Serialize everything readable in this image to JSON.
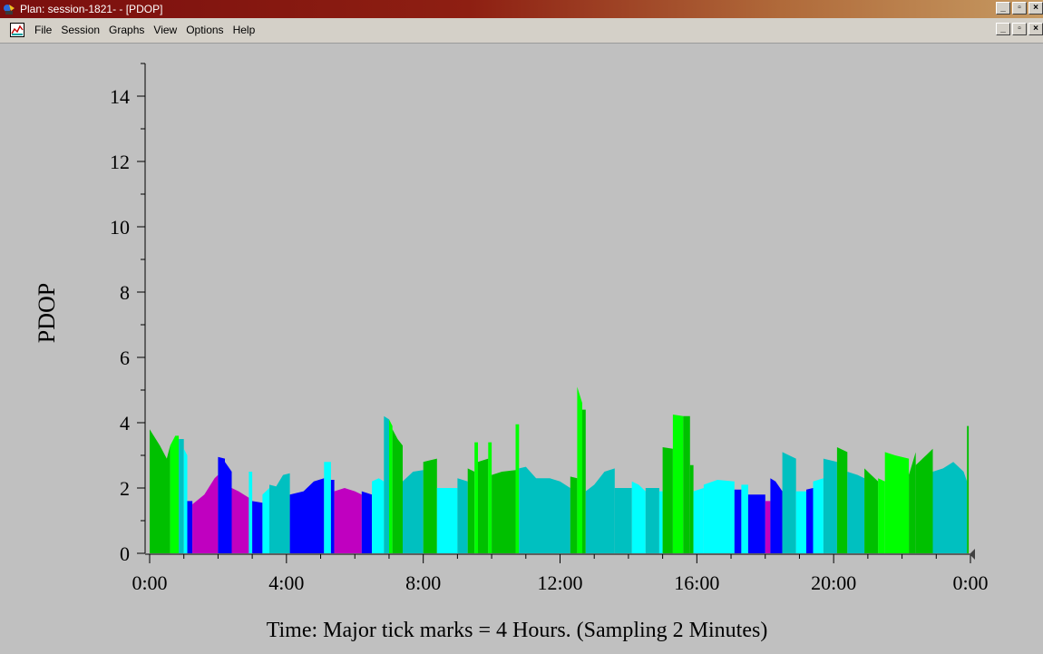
{
  "window": {
    "title": "Plan: session-1821- - [PDOP]"
  },
  "menu": {
    "items": [
      "File",
      "Session",
      "Graphs",
      "View",
      "Options",
      "Help"
    ]
  },
  "window_buttons": {
    "minimize": "_",
    "restore": "▫",
    "close": "×"
  },
  "colors": {
    "green": "#00c000",
    "magenta": "#c000c0",
    "blue": "#0000ff",
    "cyan": "#00ffff",
    "teal": "#00c0c0",
    "lime": "#00ff00",
    "background": "#c0c0c0"
  },
  "chart_data": {
    "type": "area",
    "ylabel": "PDOP",
    "xlabel": "Time: Major tick marks = 4 Hours. (Sampling 2 Minutes)",
    "xlim": [
      0,
      24
    ],
    "ylim": [
      0,
      15
    ],
    "x_tick_labels": [
      "0:00",
      "4:00",
      "8:00",
      "12:00",
      "16:00",
      "20:00",
      "0:00"
    ],
    "y_tick_labels": [
      "0",
      "2",
      "4",
      "6",
      "8",
      "10",
      "12",
      "14"
    ],
    "segments": [
      {
        "x0": 0.0,
        "x1": 0.6,
        "color": "green",
        "points": [
          [
            0.0,
            3.8
          ],
          [
            0.3,
            3.3
          ],
          [
            0.5,
            2.9
          ],
          [
            0.6,
            3.3
          ]
        ]
      },
      {
        "x0": 0.6,
        "x1": 0.85,
        "color": "lime",
        "points": [
          [
            0.6,
            3.3
          ],
          [
            0.75,
            3.6
          ],
          [
            0.85,
            3.6
          ]
        ]
      },
      {
        "x0": 0.85,
        "x1": 1.0,
        "color": "teal",
        "points": [
          [
            0.85,
            3.5
          ],
          [
            1.0,
            3.5
          ]
        ]
      },
      {
        "x0": 1.0,
        "x1": 1.1,
        "color": "cyan",
        "points": [
          [
            1.0,
            3.2
          ],
          [
            1.1,
            3.0
          ]
        ]
      },
      {
        "x0": 1.1,
        "x1": 1.25,
        "color": "blue",
        "points": [
          [
            1.1,
            1.6
          ],
          [
            1.25,
            1.6
          ]
        ]
      },
      {
        "x0": 1.25,
        "x1": 2.0,
        "color": "magenta",
        "points": [
          [
            1.25,
            1.5
          ],
          [
            1.6,
            1.8
          ],
          [
            1.9,
            2.3
          ],
          [
            2.0,
            2.4
          ]
        ]
      },
      {
        "x0": 2.0,
        "x1": 2.2,
        "color": "blue",
        "points": [
          [
            2.0,
            2.95
          ],
          [
            2.2,
            2.9
          ]
        ]
      },
      {
        "x0": 2.2,
        "x1": 2.4,
        "color": "blue",
        "points": [
          [
            2.2,
            2.8
          ],
          [
            2.4,
            2.5
          ]
        ]
      },
      {
        "x0": 2.4,
        "x1": 2.9,
        "color": "magenta",
        "points": [
          [
            2.4,
            2.0
          ],
          [
            2.6,
            1.9
          ],
          [
            2.9,
            1.7
          ]
        ]
      },
      {
        "x0": 2.9,
        "x1": 3.0,
        "color": "cyan",
        "points": [
          [
            2.9,
            2.5
          ],
          [
            3.0,
            2.5
          ]
        ]
      },
      {
        "x0": 3.0,
        "x1": 3.3,
        "color": "blue",
        "points": [
          [
            3.0,
            1.6
          ],
          [
            3.3,
            1.55
          ]
        ]
      },
      {
        "x0": 3.3,
        "x1": 3.5,
        "color": "cyan",
        "points": [
          [
            3.3,
            1.8
          ],
          [
            3.5,
            2.0
          ]
        ]
      },
      {
        "x0": 3.5,
        "x1": 4.1,
        "color": "teal",
        "points": [
          [
            3.5,
            2.1
          ],
          [
            3.7,
            2.05
          ],
          [
            3.9,
            2.4
          ],
          [
            4.1,
            2.45
          ]
        ]
      },
      {
        "x0": 4.1,
        "x1": 5.1,
        "color": "blue",
        "points": [
          [
            4.1,
            1.8
          ],
          [
            4.5,
            1.9
          ],
          [
            4.8,
            2.2
          ],
          [
            5.1,
            2.3
          ]
        ]
      },
      {
        "x0": 5.1,
        "x1": 5.3,
        "color": "cyan",
        "points": [
          [
            5.1,
            2.8
          ],
          [
            5.3,
            2.8
          ]
        ]
      },
      {
        "x0": 5.3,
        "x1": 5.4,
        "color": "blue",
        "points": [
          [
            5.3,
            2.25
          ],
          [
            5.4,
            2.25
          ]
        ]
      },
      {
        "x0": 5.4,
        "x1": 6.2,
        "color": "magenta",
        "points": [
          [
            5.4,
            1.9
          ],
          [
            5.7,
            2.0
          ],
          [
            6.0,
            1.9
          ],
          [
            6.2,
            1.8
          ]
        ]
      },
      {
        "x0": 6.2,
        "x1": 6.5,
        "color": "blue",
        "points": [
          [
            6.2,
            1.9
          ],
          [
            6.5,
            1.8
          ]
        ]
      },
      {
        "x0": 6.5,
        "x1": 6.85,
        "color": "cyan",
        "points": [
          [
            6.5,
            2.2
          ],
          [
            6.7,
            2.3
          ],
          [
            6.85,
            2.2
          ]
        ]
      },
      {
        "x0": 6.85,
        "x1": 7.0,
        "color": "teal",
        "points": [
          [
            6.85,
            4.2
          ],
          [
            7.0,
            4.1
          ]
        ]
      },
      {
        "x0": 7.0,
        "x1": 7.1,
        "color": "lime",
        "points": [
          [
            7.0,
            4.1
          ],
          [
            7.1,
            3.9
          ]
        ]
      },
      {
        "x0": 7.1,
        "x1": 7.4,
        "color": "green",
        "points": [
          [
            7.1,
            3.8
          ],
          [
            7.25,
            3.5
          ],
          [
            7.4,
            3.3
          ]
        ]
      },
      {
        "x0": 7.4,
        "x1": 8.0,
        "color": "teal",
        "points": [
          [
            7.4,
            2.2
          ],
          [
            7.7,
            2.5
          ],
          [
            8.0,
            2.55
          ]
        ]
      },
      {
        "x0": 8.0,
        "x1": 8.4,
        "color": "green",
        "points": [
          [
            8.0,
            2.8
          ],
          [
            8.4,
            2.9
          ]
        ]
      },
      {
        "x0": 8.4,
        "x1": 9.0,
        "color": "cyan",
        "points": [
          [
            8.4,
            2.0
          ],
          [
            9.0,
            2.0
          ]
        ]
      },
      {
        "x0": 9.0,
        "x1": 9.3,
        "color": "teal",
        "points": [
          [
            9.0,
            2.3
          ],
          [
            9.3,
            2.2
          ]
        ]
      },
      {
        "x0": 9.3,
        "x1": 9.5,
        "color": "green",
        "points": [
          [
            9.3,
            2.6
          ],
          [
            9.5,
            2.5
          ]
        ]
      },
      {
        "x0": 9.5,
        "x1": 9.6,
        "color": "lime",
        "points": [
          [
            9.5,
            3.4
          ],
          [
            9.6,
            3.4
          ]
        ]
      },
      {
        "x0": 9.6,
        "x1": 9.9,
        "color": "green",
        "points": [
          [
            9.6,
            2.8
          ],
          [
            9.9,
            2.9
          ]
        ]
      },
      {
        "x0": 9.9,
        "x1": 10.0,
        "color": "lime",
        "points": [
          [
            9.9,
            3.4
          ],
          [
            10.0,
            3.4
          ]
        ]
      },
      {
        "x0": 10.0,
        "x1": 10.7,
        "color": "green",
        "points": [
          [
            10.0,
            2.4
          ],
          [
            10.3,
            2.5
          ],
          [
            10.7,
            2.55
          ]
        ]
      },
      {
        "x0": 10.7,
        "x1": 10.8,
        "color": "lime",
        "points": [
          [
            10.7,
            3.95
          ],
          [
            10.8,
            3.95
          ]
        ]
      },
      {
        "x0": 10.8,
        "x1": 12.3,
        "color": "teal",
        "points": [
          [
            10.8,
            2.6
          ],
          [
            11.0,
            2.65
          ],
          [
            11.3,
            2.3
          ],
          [
            11.7,
            2.3
          ],
          [
            12.0,
            2.2
          ],
          [
            12.3,
            2.0
          ]
        ]
      },
      {
        "x0": 12.3,
        "x1": 12.5,
        "color": "green",
        "points": [
          [
            12.3,
            2.35
          ],
          [
            12.5,
            2.3
          ]
        ]
      },
      {
        "x0": 12.5,
        "x1": 12.65,
        "color": "lime",
        "points": [
          [
            12.5,
            5.1
          ],
          [
            12.65,
            4.6
          ]
        ]
      },
      {
        "x0": 12.65,
        "x1": 12.75,
        "color": "green",
        "points": [
          [
            12.65,
            4.4
          ],
          [
            12.75,
            4.4
          ]
        ]
      },
      {
        "x0": 12.75,
        "x1": 13.6,
        "color": "teal",
        "points": [
          [
            12.75,
            1.9
          ],
          [
            13.0,
            2.1
          ],
          [
            13.3,
            2.5
          ],
          [
            13.6,
            2.6
          ]
        ]
      },
      {
        "x0": 13.6,
        "x1": 14.1,
        "color": "teal",
        "points": [
          [
            13.6,
            2.0
          ],
          [
            14.1,
            2.0
          ]
        ]
      },
      {
        "x0": 14.1,
        "x1": 14.5,
        "color": "cyan",
        "points": [
          [
            14.1,
            2.2
          ],
          [
            14.3,
            2.1
          ],
          [
            14.5,
            1.9
          ]
        ]
      },
      {
        "x0": 14.5,
        "x1": 14.9,
        "color": "teal",
        "points": [
          [
            14.5,
            2.0
          ],
          [
            14.9,
            2.0
          ]
        ]
      },
      {
        "x0": 14.9,
        "x1": 15.0,
        "color": "cyan",
        "points": [
          [
            14.9,
            1.9
          ],
          [
            15.0,
            1.9
          ]
        ]
      },
      {
        "x0": 15.0,
        "x1": 15.3,
        "color": "green",
        "points": [
          [
            15.0,
            3.25
          ],
          [
            15.3,
            3.2
          ]
        ]
      },
      {
        "x0": 15.3,
        "x1": 15.6,
        "color": "lime",
        "points": [
          [
            15.3,
            4.25
          ],
          [
            15.6,
            4.2
          ]
        ]
      },
      {
        "x0": 15.6,
        "x1": 15.8,
        "color": "green",
        "points": [
          [
            15.6,
            4.2
          ],
          [
            15.8,
            4.2
          ]
        ]
      },
      {
        "x0": 15.8,
        "x1": 15.9,
        "color": "green",
        "points": [
          [
            15.8,
            2.7
          ],
          [
            15.9,
            2.7
          ]
        ]
      },
      {
        "x0": 15.9,
        "x1": 16.2,
        "color": "cyan",
        "points": [
          [
            15.9,
            1.9
          ],
          [
            16.2,
            2.0
          ]
        ]
      },
      {
        "x0": 16.2,
        "x1": 17.1,
        "color": "cyan",
        "points": [
          [
            16.2,
            2.1
          ],
          [
            16.6,
            2.25
          ],
          [
            17.1,
            2.2
          ]
        ]
      },
      {
        "x0": 17.1,
        "x1": 17.3,
        "color": "blue",
        "points": [
          [
            17.1,
            1.95
          ],
          [
            17.3,
            1.95
          ]
        ]
      },
      {
        "x0": 17.3,
        "x1": 17.5,
        "color": "cyan",
        "points": [
          [
            17.3,
            2.1
          ],
          [
            17.5,
            2.1
          ]
        ]
      },
      {
        "x0": 17.5,
        "x1": 18.0,
        "color": "blue",
        "points": [
          [
            17.5,
            1.8
          ],
          [
            18.0,
            1.8
          ]
        ]
      },
      {
        "x0": 18.0,
        "x1": 18.15,
        "color": "magenta",
        "points": [
          [
            18.0,
            1.6
          ],
          [
            18.15,
            1.6
          ]
        ]
      },
      {
        "x0": 18.15,
        "x1": 18.5,
        "color": "blue",
        "points": [
          [
            18.15,
            2.3
          ],
          [
            18.3,
            2.2
          ],
          [
            18.5,
            1.9
          ]
        ]
      },
      {
        "x0": 18.5,
        "x1": 18.9,
        "color": "teal",
        "points": [
          [
            18.5,
            3.1
          ],
          [
            18.7,
            3.0
          ],
          [
            18.9,
            2.9
          ]
        ]
      },
      {
        "x0": 18.9,
        "x1": 19.2,
        "color": "cyan",
        "points": [
          [
            18.9,
            1.9
          ],
          [
            19.2,
            1.9
          ]
        ]
      },
      {
        "x0": 19.2,
        "x1": 19.4,
        "color": "blue",
        "points": [
          [
            19.2,
            1.95
          ],
          [
            19.4,
            2.0
          ]
        ]
      },
      {
        "x0": 19.4,
        "x1": 19.7,
        "color": "cyan",
        "points": [
          [
            19.4,
            2.2
          ],
          [
            19.7,
            2.3
          ]
        ]
      },
      {
        "x0": 19.7,
        "x1": 20.1,
        "color": "teal",
        "points": [
          [
            19.7,
            2.9
          ],
          [
            20.1,
            2.8
          ]
        ]
      },
      {
        "x0": 20.1,
        "x1": 20.4,
        "color": "green",
        "points": [
          [
            20.1,
            3.25
          ],
          [
            20.4,
            3.1
          ]
        ]
      },
      {
        "x0": 20.4,
        "x1": 20.9,
        "color": "teal",
        "points": [
          [
            20.4,
            2.5
          ],
          [
            20.7,
            2.4
          ],
          [
            20.9,
            2.3
          ]
        ]
      },
      {
        "x0": 20.9,
        "x1": 21.3,
        "color": "green",
        "points": [
          [
            20.9,
            2.6
          ],
          [
            21.1,
            2.4
          ],
          [
            21.3,
            2.2
          ]
        ]
      },
      {
        "x0": 21.3,
        "x1": 21.5,
        "color": "lime",
        "points": [
          [
            21.3,
            2.3
          ],
          [
            21.5,
            2.2
          ]
        ]
      },
      {
        "x0": 21.5,
        "x1": 22.2,
        "color": "lime",
        "points": [
          [
            21.5,
            3.1
          ],
          [
            21.8,
            3.0
          ],
          [
            22.2,
            2.9
          ]
        ]
      },
      {
        "x0": 22.2,
        "x1": 22.4,
        "color": "green",
        "points": [
          [
            22.2,
            2.4
          ],
          [
            22.4,
            3.1
          ]
        ]
      },
      {
        "x0": 22.4,
        "x1": 22.9,
        "color": "green",
        "points": [
          [
            22.4,
            2.7
          ],
          [
            22.7,
            3.0
          ],
          [
            22.9,
            3.2
          ]
        ]
      },
      {
        "x0": 22.9,
        "x1": 23.9,
        "color": "teal",
        "points": [
          [
            22.9,
            2.5
          ],
          [
            23.2,
            2.6
          ],
          [
            23.5,
            2.8
          ],
          [
            23.8,
            2.5
          ],
          [
            23.9,
            2.2
          ]
        ]
      },
      {
        "x0": 23.9,
        "x1": 23.95,
        "color": "green",
        "points": [
          [
            23.9,
            3.9
          ],
          [
            23.95,
            3.9
          ]
        ]
      }
    ]
  }
}
